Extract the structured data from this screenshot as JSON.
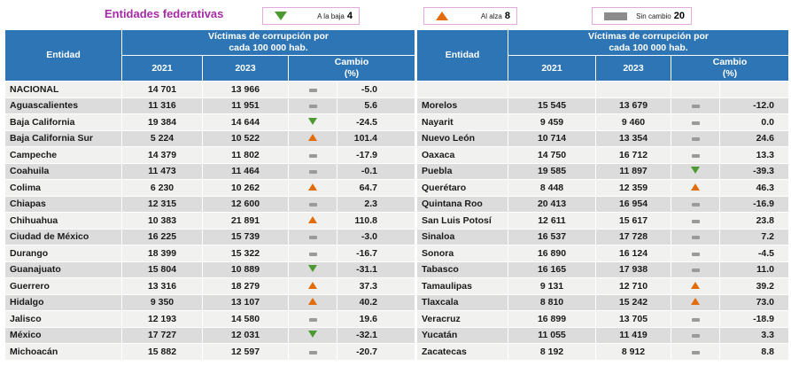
{
  "colors": {
    "header_blue": "#2E75B6",
    "title_purple": "#A62BA6",
    "legend_border_pink": "#E3A9E0",
    "down_green": "#4C9A31",
    "up_orange": "#E36C0A",
    "no_change_gray": "#8C8C8C",
    "row_light": "#F1F1F0",
    "row_dark": "#DCDCDC"
  },
  "chart_data": {
    "type": "table",
    "title": "Entidades federativas",
    "legend": [
      {
        "trend": "down",
        "label": "A la baja",
        "count": "4"
      },
      {
        "trend": "up",
        "label": "Al alza",
        "count": "8"
      },
      {
        "trend": "same",
        "label": "Sin cambio",
        "count": "20"
      }
    ],
    "headers": {
      "entity": "Entidad",
      "group_line1": "Víctimas de corrupción por",
      "group_line2": "cada 100 000 hab.",
      "y2021": "2021",
      "y2023": "2023",
      "change_line1": "Cambio",
      "change_line2": "(%)"
    },
    "tables": [
      {
        "rows": [
          {
            "name": "NACIONAL",
            "v2021": 14701,
            "v2023": 13966,
            "trend": "same",
            "change": -5.0
          },
          {
            "name": "Aguascalientes",
            "v2021": 11316,
            "v2023": 11951,
            "trend": "same",
            "change": 5.6
          },
          {
            "name": "Baja California",
            "v2021": 19384,
            "v2023": 14644,
            "trend": "down",
            "change": -24.5
          },
          {
            "name": "Baja California Sur",
            "v2021": 5224,
            "v2023": 10522,
            "trend": "up",
            "change": 101.4
          },
          {
            "name": "Campeche",
            "v2021": 14379,
            "v2023": 11802,
            "trend": "same",
            "change": -17.9
          },
          {
            "name": "Coahuila",
            "v2021": 11473,
            "v2023": 11464,
            "trend": "same",
            "change": -0.1
          },
          {
            "name": "Colima",
            "v2021": 6230,
            "v2023": 10262,
            "trend": "up",
            "change": 64.7
          },
          {
            "name": "Chiapas",
            "v2021": 12315,
            "v2023": 12600,
            "trend": "same",
            "change": 2.3
          },
          {
            "name": "Chihuahua",
            "v2021": 10383,
            "v2023": 21891,
            "trend": "up",
            "change": 110.8
          },
          {
            "name": "Ciudad de México",
            "v2021": 16225,
            "v2023": 15739,
            "trend": "same",
            "change": -3.0
          },
          {
            "name": "Durango",
            "v2021": 18399,
            "v2023": 15322,
            "trend": "same",
            "change": -16.7
          },
          {
            "name": "Guanajuato",
            "v2021": 15804,
            "v2023": 10889,
            "trend": "down",
            "change": -31.1
          },
          {
            "name": "Guerrero",
            "v2021": 13316,
            "v2023": 18279,
            "trend": "up",
            "change": 37.3
          },
          {
            "name": "Hidalgo",
            "v2021": 9350,
            "v2023": 13107,
            "trend": "up",
            "change": 40.2
          },
          {
            "name": "Jalisco",
            "v2021": 12193,
            "v2023": 14580,
            "trend": "same",
            "change": 19.6
          },
          {
            "name": "México",
            "v2021": 17727,
            "v2023": 12031,
            "trend": "down",
            "change": -32.1
          },
          {
            "name": "Michoacán",
            "v2021": 15882,
            "v2023": 12597,
            "trend": "same",
            "change": -20.7
          }
        ]
      },
      {
        "rows": [
          {
            "name": "",
            "v2021": null,
            "v2023": null,
            "trend": "",
            "change": null
          },
          {
            "name": "Morelos",
            "v2021": 15545,
            "v2023": 13679,
            "trend": "same",
            "change": -12.0
          },
          {
            "name": "Nayarit",
            "v2021": 9459,
            "v2023": 9460,
            "trend": "same",
            "change": 0.0
          },
          {
            "name": "Nuevo León",
            "v2021": 10714,
            "v2023": 13354,
            "trend": "same",
            "change": 24.6
          },
          {
            "name": "Oaxaca",
            "v2021": 14750,
            "v2023": 16712,
            "trend": "same",
            "change": 13.3
          },
          {
            "name": "Puebla",
            "v2021": 19585,
            "v2023": 11897,
            "trend": "down",
            "change": -39.3
          },
          {
            "name": "Querétaro",
            "v2021": 8448,
            "v2023": 12359,
            "trend": "up",
            "change": 46.3
          },
          {
            "name": "Quintana Roo",
            "v2021": 20413,
            "v2023": 16954,
            "trend": "same",
            "change": -16.9
          },
          {
            "name": "San Luis Potosí",
            "v2021": 12611,
            "v2023": 15617,
            "trend": "same",
            "change": 23.8
          },
          {
            "name": "Sinaloa",
            "v2021": 16537,
            "v2023": 17728,
            "trend": "same",
            "change": 7.2
          },
          {
            "name": "Sonora",
            "v2021": 16890,
            "v2023": 16124,
            "trend": "same",
            "change": -4.5
          },
          {
            "name": "Tabasco",
            "v2021": 16165,
            "v2023": 17938,
            "trend": "same",
            "change": 11.0
          },
          {
            "name": "Tamaulipas",
            "v2021": 9131,
            "v2023": 12710,
            "trend": "up",
            "change": 39.2
          },
          {
            "name": "Tlaxcala",
            "v2021": 8810,
            "v2023": 15242,
            "trend": "up",
            "change": 73.0
          },
          {
            "name": "Veracruz",
            "v2021": 16899,
            "v2023": 13705,
            "trend": "same",
            "change": -18.9
          },
          {
            "name": "Yucatán",
            "v2021": 11055,
            "v2023": 11419,
            "trend": "same",
            "change": 3.3
          },
          {
            "name": "Zacatecas",
            "v2021": 8192,
            "v2023": 8912,
            "trend": "same",
            "change": 8.8
          }
        ]
      }
    ]
  }
}
